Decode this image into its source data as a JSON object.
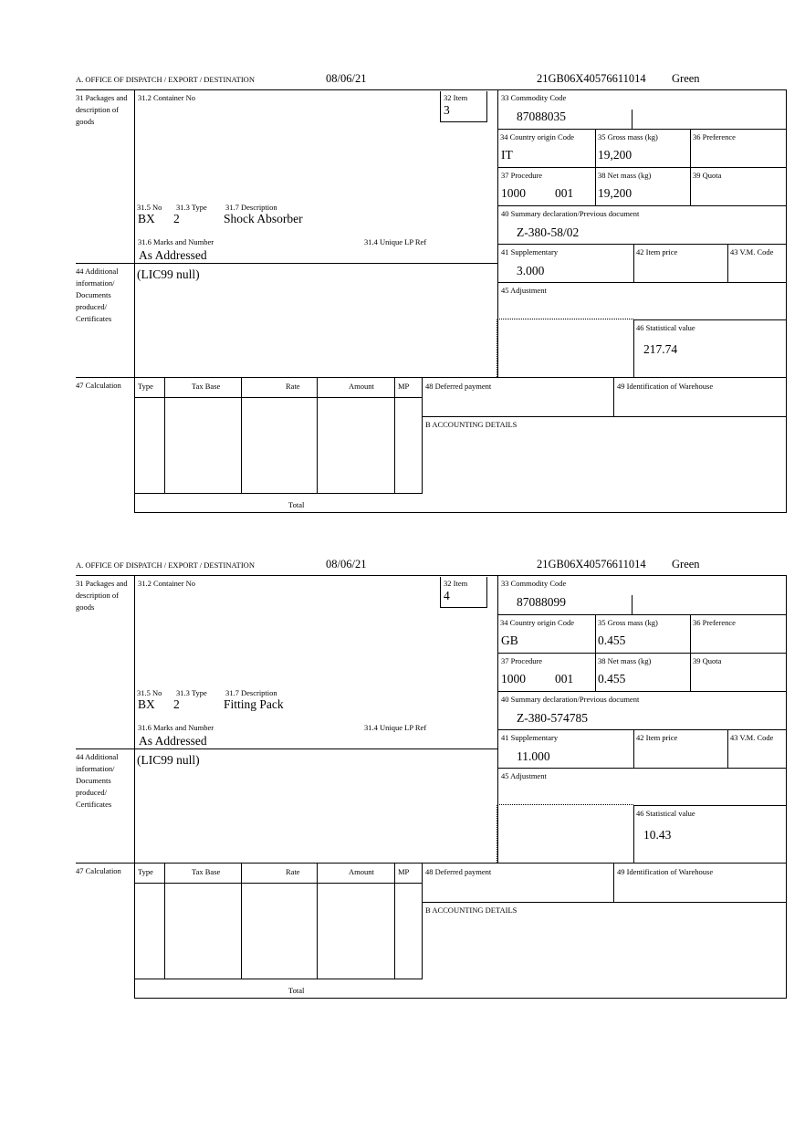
{
  "labels": {
    "office": "A. OFFICE OF DISPATCH / EXPORT / DESTINATION",
    "packages": "31 Packages and description of goods",
    "container_no": "31.2 Container No",
    "item": "32 Item",
    "commodity_code": "33 Commodity Code",
    "country_origin": "34 Country origin Code",
    "gross_mass": "35 Gross mass (kg)",
    "preference": "36 Preference",
    "procedure": "37 Procedure",
    "net_mass": "38 Net mass (kg)",
    "quota": "39 Quota",
    "summary_declaration": "40 Summary declaration/Previous document",
    "supplementary": "41 Supplementary",
    "item_price": "42 Item price",
    "vm_code": "43 V.M. Code",
    "adjustment": "45 Adjustment",
    "statistical_value": "46 Statistical value",
    "pkg_no": "31.5 No",
    "pkg_type": "31.3 Type",
    "pkg_description": "31.7 Description",
    "marks": "31.6 Marks and Number",
    "unique_lp": "31.4 Unique LP Ref",
    "additional_info": "44 Additional information/ Documents produced/ Certificates",
    "calculation": "47 Calculation",
    "calc_headers": [
      "Type",
      "Tax Base",
      "Rate",
      "Amount",
      "MP"
    ],
    "total": "Total",
    "deferred_payment": "48 Deferred payment",
    "warehouse": "49 Identification of Warehouse",
    "accounting": "B ACCOUNTING DETAILS"
  },
  "blocks": [
    {
      "date": "08/06/21",
      "reference": "21GB06X40576611014",
      "route": "Green",
      "item": "3",
      "commodity_code": "87088035",
      "country_origin": "IT",
      "gross_mass": "19,200",
      "procedure": "1000",
      "procedure_additional": "001",
      "net_mass": "19,200",
      "summary_declaration": "Z-380-58/02",
      "supplementary": "3.000",
      "statistical_value": "217.74",
      "pkg_no": "BX",
      "pkg_type": "2",
      "pkg_description": "Shock Absorber",
      "marks": "As Addressed",
      "additional_info": "(LIC99 null)"
    },
    {
      "date": "08/06/21",
      "reference": "21GB06X40576611014",
      "route": "Green",
      "item": "4",
      "commodity_code": "87088099",
      "country_origin": "GB",
      "gross_mass": "0.455",
      "procedure": "1000",
      "procedure_additional": "001",
      "net_mass": "0.455",
      "summary_declaration": "Z-380-574785",
      "supplementary": "11.000",
      "statistical_value": "10.43",
      "pkg_no": "BX",
      "pkg_type": "2",
      "pkg_description": "Fitting Pack",
      "marks": "As Addressed",
      "additional_info": "(LIC99 null)"
    }
  ]
}
